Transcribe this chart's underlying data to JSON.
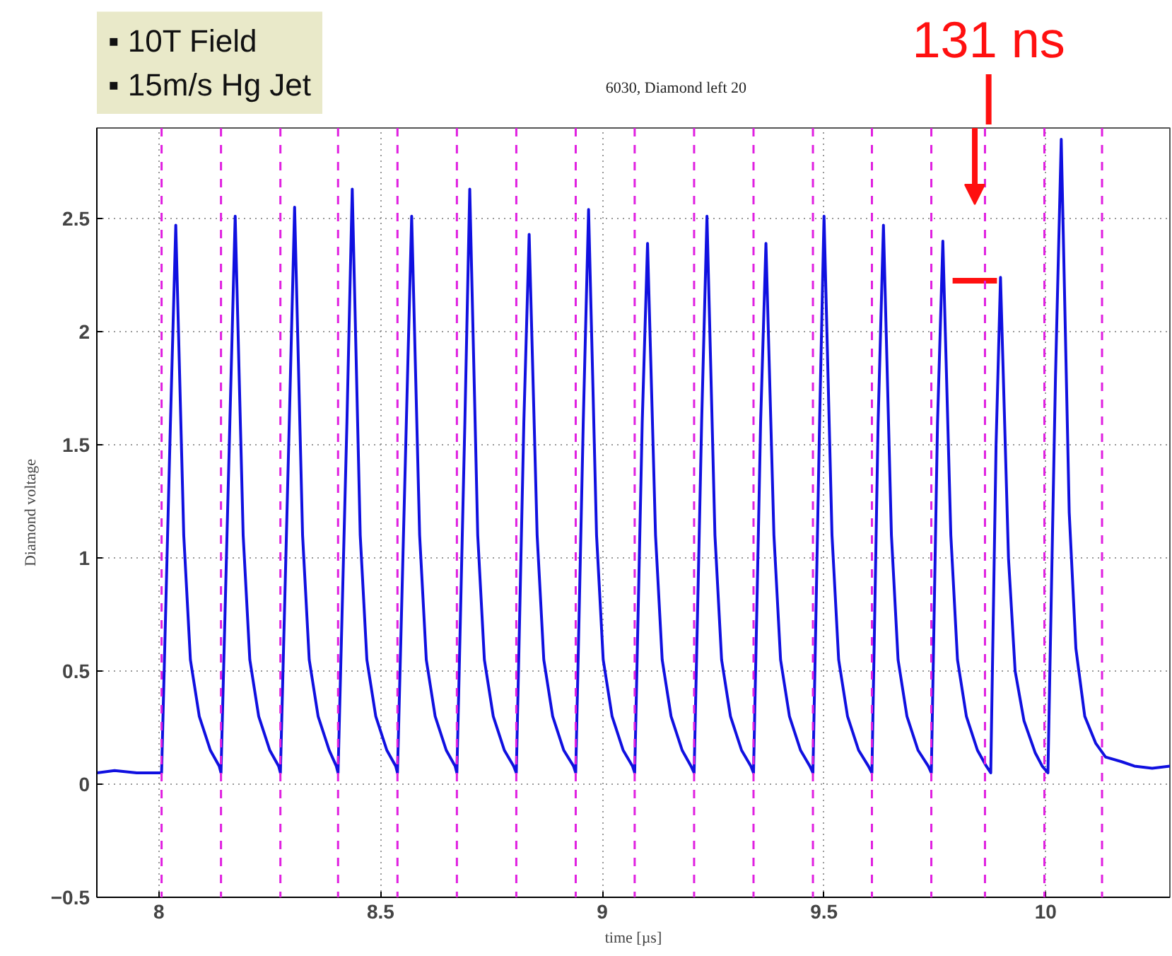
{
  "chart_data": {
    "type": "line",
    "title": "6030, Diamond left 20",
    "xlabel": "time [µs]",
    "ylabel": "Diamond voltage",
    "annotations": [
      "▪ 10T Field\n▪ 15m/s Hg Jet",
      "131 ns"
    ],
    "xlim": [
      7.86,
      10.28
    ],
    "ylim": [
      -0.5,
      2.9
    ],
    "xticks": [
      8,
      8.5,
      9,
      9.5,
      10
    ],
    "yticks": [
      -0.5,
      0,
      0.5,
      1,
      1.5,
      2,
      2.5
    ],
    "grid": true,
    "marker": "none",
    "line_style": "solid",
    "ref_lines": [
      {
        "axis": "x",
        "value": 8.006,
        "color": "#e020e0",
        "line_style": "dashed"
      },
      {
        "axis": "x",
        "value": 8.14,
        "color": "#e020e0",
        "line_style": "dashed"
      },
      {
        "axis": "x",
        "value": 8.274,
        "color": "#e020e0",
        "line_style": "dashed"
      },
      {
        "axis": "x",
        "value": 8.404,
        "color": "#e020e0",
        "line_style": "dashed"
      },
      {
        "axis": "x",
        "value": 8.538,
        "color": "#e020e0",
        "line_style": "dashed"
      },
      {
        "axis": "x",
        "value": 8.672,
        "color": "#e020e0",
        "line_style": "dashed"
      },
      {
        "axis": "x",
        "value": 8.806,
        "color": "#e020e0",
        "line_style": "dashed"
      },
      {
        "axis": "x",
        "value": 8.94,
        "color": "#e020e0",
        "line_style": "dashed"
      },
      {
        "axis": "x",
        "value": 9.073,
        "color": "#e020e0",
        "line_style": "dashed"
      },
      {
        "axis": "x",
        "value": 9.207,
        "color": "#e020e0",
        "line_style": "dashed"
      },
      {
        "axis": "x",
        "value": 9.341,
        "color": "#e020e0",
        "line_style": "dashed"
      },
      {
        "axis": "x",
        "value": 9.475,
        "color": "#e020e0",
        "line_style": "dashed"
      },
      {
        "axis": "x",
        "value": 9.608,
        "color": "#e020e0",
        "line_style": "dashed"
      },
      {
        "axis": "x",
        "value": 9.742,
        "color": "#e020e0",
        "line_style": "dashed"
      },
      {
        "axis": "x",
        "value": 9.863,
        "color": "#e020e0",
        "line_style": "dashed"
      },
      {
        "axis": "x",
        "value": 9.997,
        "color": "#e020e0",
        "line_style": "dashed"
      },
      {
        "axis": "x",
        "value": 10.127,
        "color": "#e020e0",
        "line_style": "dashed"
      }
    ],
    "series": [
      {
        "color": "#1010e0",
        "x": [
          7.86,
          7.9,
          7.95,
          8.006,
          8.026,
          8.038,
          8.056,
          8.071,
          8.091,
          8.116,
          8.136,
          8.14,
          8.16,
          8.172,
          8.19,
          8.205,
          8.225,
          8.25,
          8.27,
          8.274,
          8.294,
          8.306,
          8.324,
          8.339,
          8.359,
          8.384,
          8.4,
          8.404,
          8.424,
          8.436,
          8.454,
          8.469,
          8.489,
          8.514,
          8.534,
          8.538,
          8.558,
          8.57,
          8.588,
          8.603,
          8.623,
          8.648,
          8.668,
          8.672,
          8.69,
          8.701,
          8.719,
          8.734,
          8.754,
          8.779,
          8.8,
          8.806,
          8.823,
          8.835,
          8.853,
          8.868,
          8.888,
          8.913,
          8.935,
          8.94,
          8.957,
          8.969,
          8.987,
          9.002,
          9.022,
          9.047,
          9.068,
          9.073,
          9.09,
          9.102,
          9.12,
          9.135,
          9.155,
          9.18,
          9.2,
          9.207,
          9.224,
          9.236,
          9.254,
          9.269,
          9.289,
          9.314,
          9.335,
          9.341,
          9.357,
          9.369,
          9.387,
          9.402,
          9.422,
          9.447,
          9.468,
          9.475,
          9.49,
          9.5,
          9.518,
          9.533,
          9.553,
          9.578,
          9.6,
          9.608,
          9.622,
          9.634,
          9.652,
          9.667,
          9.687,
          9.712,
          9.735,
          9.742,
          9.756,
          9.768,
          9.786,
          9.801,
          9.821,
          9.846,
          9.866,
          9.876,
          9.888,
          9.898,
          9.916,
          9.931,
          9.951,
          9.976,
          9.992,
          10.005,
          10.022,
          10.035,
          10.053,
          10.068,
          10.088,
          10.113,
          10.135,
          10.17,
          10.2,
          10.24,
          10.28
        ],
        "values": [
          0.05,
          0.06,
          0.05,
          0.05,
          1.6,
          2.47,
          1.1,
          0.55,
          0.3,
          0.15,
          0.08,
          0.05,
          1.6,
          2.51,
          1.1,
          0.55,
          0.3,
          0.15,
          0.08,
          0.05,
          1.6,
          2.55,
          1.1,
          0.55,
          0.3,
          0.15,
          0.08,
          0.05,
          1.6,
          2.63,
          1.1,
          0.55,
          0.3,
          0.15,
          0.08,
          0.05,
          1.6,
          2.51,
          1.1,
          0.55,
          0.3,
          0.15,
          0.08,
          0.05,
          1.6,
          2.63,
          1.1,
          0.55,
          0.3,
          0.15,
          0.08,
          0.05,
          1.6,
          2.43,
          1.1,
          0.55,
          0.3,
          0.15,
          0.08,
          0.05,
          1.6,
          2.54,
          1.1,
          0.55,
          0.3,
          0.15,
          0.08,
          0.05,
          1.6,
          2.39,
          1.1,
          0.55,
          0.3,
          0.15,
          0.08,
          0.05,
          1.6,
          2.51,
          1.1,
          0.55,
          0.3,
          0.15,
          0.08,
          0.05,
          1.6,
          2.39,
          1.1,
          0.55,
          0.3,
          0.15,
          0.08,
          0.05,
          1.6,
          2.51,
          1.1,
          0.55,
          0.3,
          0.15,
          0.08,
          0.05,
          1.6,
          2.47,
          1.1,
          0.55,
          0.3,
          0.15,
          0.08,
          0.05,
          1.6,
          2.4,
          1.1,
          0.55,
          0.3,
          0.15,
          0.08,
          0.05,
          1.5,
          2.24,
          1.0,
          0.5,
          0.28,
          0.14,
          0.08,
          0.05,
          1.8,
          2.85,
          1.2,
          0.6,
          0.3,
          0.18,
          0.12,
          0.1,
          0.08,
          0.07,
          0.08
        ]
      },
      {
        "color": "#ff1010",
        "x": [
          9.79,
          9.89
        ],
        "values": [
          2.225,
          2.225
        ]
      }
    ]
  }
}
